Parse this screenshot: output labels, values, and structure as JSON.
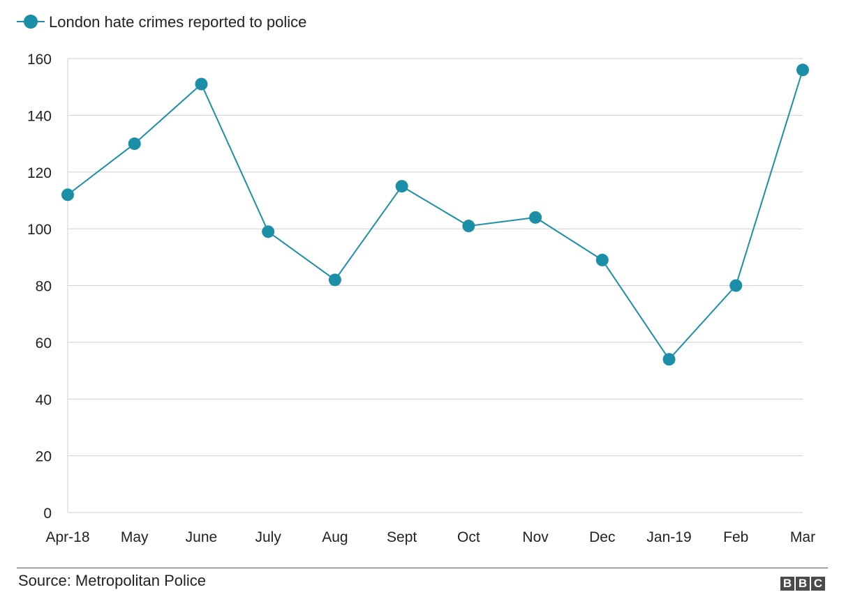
{
  "chart_data": {
    "type": "line",
    "title": "",
    "xlabel": "",
    "ylabel": "",
    "categories": [
      "Apr-18",
      "May",
      "June",
      "July",
      "Aug",
      "Sept",
      "Oct",
      "Nov",
      "Dec",
      "Jan-19",
      "Feb",
      "Mar"
    ],
    "series": [
      {
        "name": "London hate crimes reported to police",
        "color": "#1b8ea8",
        "values": [
          112,
          130,
          151,
          99,
          82,
          115,
          101,
          104,
          89,
          54,
          80,
          156
        ]
      }
    ],
    "ylim": [
      0,
      160
    ],
    "yticks": [
      0,
      20,
      40,
      60,
      80,
      100,
      120,
      140,
      160
    ],
    "grid": true,
    "legend": "top-left"
  },
  "footer": {
    "source": "Source: Metropolitan Police",
    "logo": [
      "B",
      "B",
      "C"
    ]
  }
}
